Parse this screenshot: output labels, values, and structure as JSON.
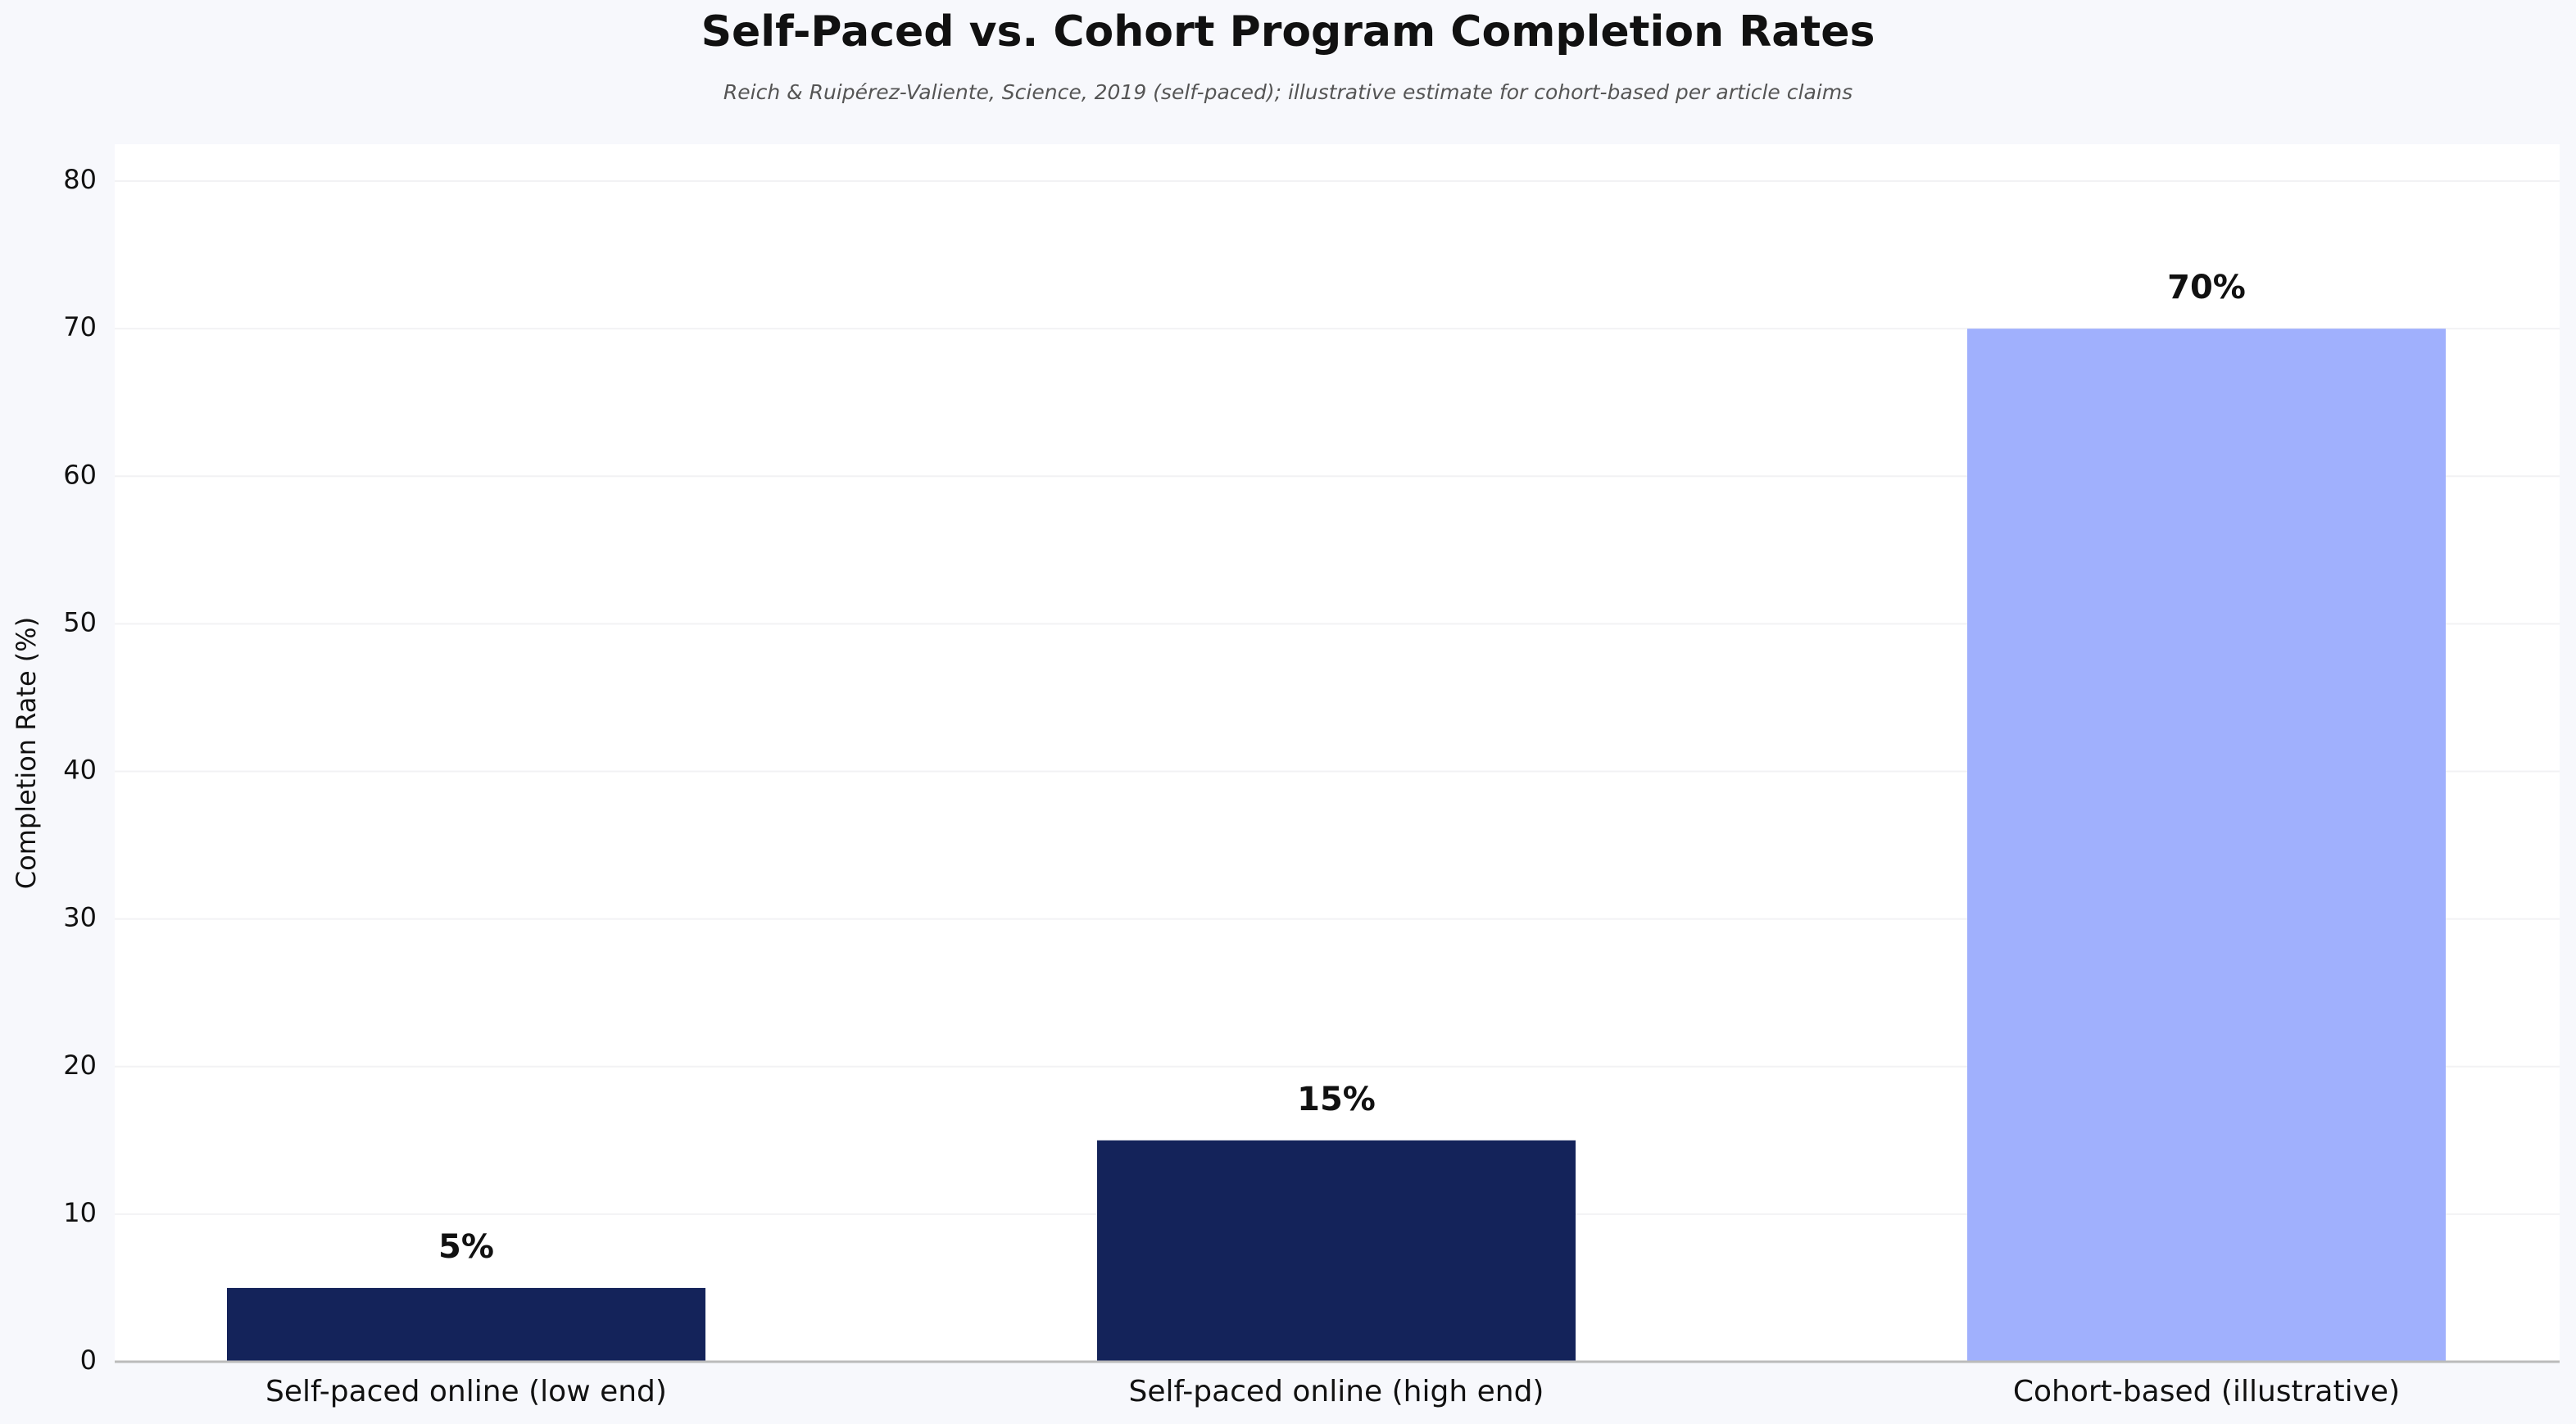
{
  "chart_data": {
    "type": "bar",
    "title": "Self-Paced vs. Cohort Program Completion Rates",
    "subtitle": "Reich & Ruipérez-Valiente, Science, 2019 (self-paced); illustrative estimate for cohort-based per article claims",
    "y_label": "Completion Rate (%)",
    "categories": [
      "Self-paced online (low end)",
      "Self-paced online (high end)",
      "Cohort-based (illustrative)"
    ],
    "values": [
      5,
      15,
      70
    ],
    "value_labels": [
      "5%",
      "15%",
      "70%"
    ],
    "colors": [
      "#14235a",
      "#14235a",
      "#a0b0fd"
    ],
    "ylim": [
      0,
      82.5
    ],
    "yticks": [
      0,
      10,
      20,
      30,
      40,
      50,
      60,
      70,
      80
    ],
    "grid": true
  }
}
